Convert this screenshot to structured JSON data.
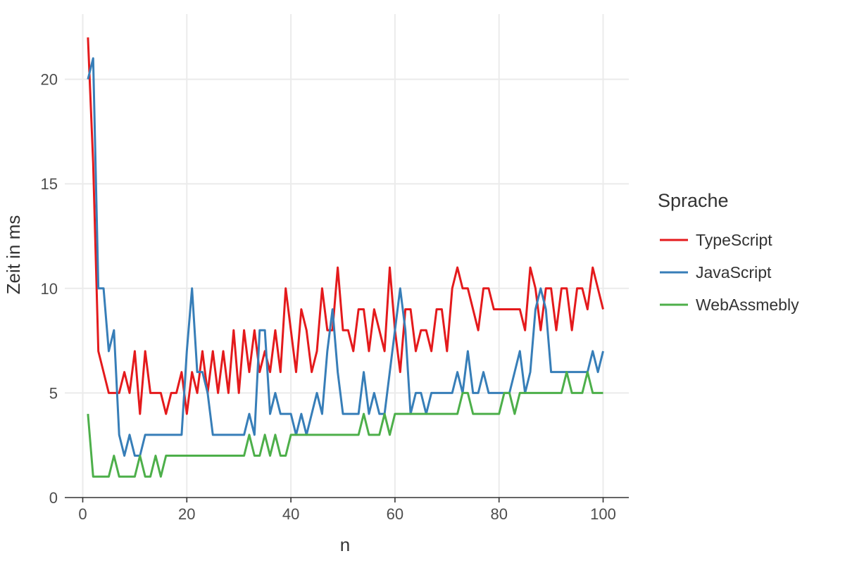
{
  "chart_data": {
    "type": "line",
    "xlabel": "n",
    "ylabel": "Zeit in ms",
    "xlim": [
      0,
      103
    ],
    "ylim": [
      0,
      23
    ],
    "xticks": [
      0,
      20,
      40,
      60,
      80,
      100
    ],
    "yticks": [
      0,
      5,
      10,
      15,
      20
    ],
    "grid": true,
    "legend": {
      "title": "Sprache",
      "placement": "right"
    },
    "x_start": 1,
    "series": [
      {
        "name": "TypeScript",
        "color": "#e41a1c",
        "values": [
          22,
          16,
          7,
          6,
          5,
          5,
          5,
          6,
          5,
          7,
          4,
          7,
          5,
          5,
          5,
          4,
          5,
          5,
          6,
          4,
          6,
          5,
          7,
          5,
          7,
          5,
          7,
          5,
          8,
          5,
          8,
          6,
          8,
          6,
          7,
          6,
          8,
          6,
          10,
          8,
          6,
          9,
          8,
          6,
          7,
          10,
          8,
          8,
          11,
          8,
          8,
          7,
          9,
          9,
          7,
          9,
          8,
          7,
          11,
          8,
          6,
          9,
          9,
          7,
          8,
          8,
          7,
          9,
          9,
          7,
          10,
          11,
          10,
          10,
          9,
          8,
          10,
          10,
          9,
          9,
          9,
          9,
          9,
          9,
          8,
          11,
          10,
          8,
          10,
          10,
          8,
          10,
          10,
          8,
          10,
          10,
          9,
          11,
          10,
          9
        ]
      },
      {
        "name": "JavaScript",
        "color": "#377eb8",
        "values": [
          20,
          21,
          10,
          10,
          7,
          8,
          3,
          2,
          3,
          2,
          2,
          3,
          3,
          3,
          3,
          3,
          3,
          3,
          3,
          7,
          10,
          6,
          6,
          5,
          3,
          3,
          3,
          3,
          3,
          3,
          3,
          4,
          3,
          8,
          8,
          4,
          5,
          4,
          4,
          4,
          3,
          4,
          3,
          4,
          5,
          4,
          7,
          9,
          6,
          4,
          4,
          4,
          4,
          6,
          4,
          5,
          4,
          4,
          6,
          8,
          10,
          8,
          4,
          5,
          5,
          4,
          5,
          5,
          5,
          5,
          5,
          6,
          5,
          7,
          5,
          5,
          6,
          5,
          5,
          5,
          5,
          5,
          6,
          7,
          5,
          6,
          9,
          10,
          9,
          6,
          6,
          6,
          6,
          6,
          6,
          6,
          6,
          7,
          6,
          7
        ]
      },
      {
        "name": "WebAssmebly",
        "color": "#4daf4a",
        "values": [
          4,
          1,
          1,
          1,
          1,
          2,
          1,
          1,
          1,
          1,
          2,
          1,
          1,
          2,
          1,
          2,
          2,
          2,
          2,
          2,
          2,
          2,
          2,
          2,
          2,
          2,
          2,
          2,
          2,
          2,
          2,
          3,
          2,
          2,
          3,
          2,
          3,
          2,
          2,
          3,
          3,
          3,
          3,
          3,
          3,
          3,
          3,
          3,
          3,
          3,
          3,
          3,
          3,
          4,
          3,
          3,
          3,
          4,
          3,
          4,
          4,
          4,
          4,
          4,
          4,
          4,
          4,
          4,
          4,
          4,
          4,
          4,
          5,
          5,
          4,
          4,
          4,
          4,
          4,
          4,
          5,
          5,
          4,
          5,
          5,
          5,
          5,
          5,
          5,
          5,
          5,
          5,
          6,
          5,
          5,
          5,
          6,
          5,
          5,
          5
        ]
      }
    ]
  }
}
